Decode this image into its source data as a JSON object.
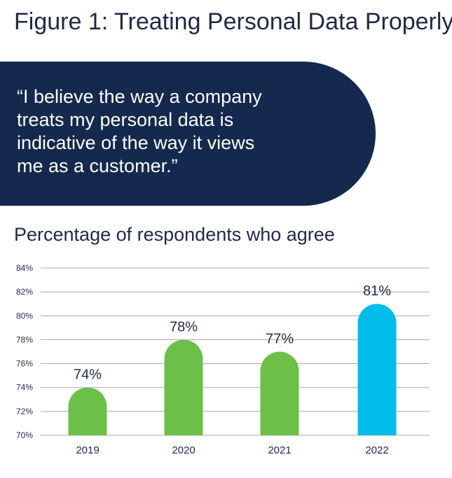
{
  "figure": {
    "title": "Figure 1: Treating Personal Data Properly",
    "quote": "“I believe the way a company\n treats my personal data is\n indicative of the way it views\n me as a customer.”"
  },
  "colors": {
    "quote_background": "#14294d",
    "bar_green": "#6cc04a",
    "bar_blue": "#00bceb",
    "text_dark": "#1f2a44",
    "grid": "#a8a8a8"
  },
  "chart_data": {
    "type": "bar",
    "title": "Percentage of respondents who agree",
    "xlabel": "",
    "ylabel": "",
    "categories": [
      "2019",
      "2020",
      "2021",
      "2022"
    ],
    "values": [
      74,
      78,
      77,
      81
    ],
    "value_labels": [
      "74%",
      "78%",
      "77%",
      "81%"
    ],
    "bar_colors": [
      "#6cc04a",
      "#6cc04a",
      "#6cc04a",
      "#00bceb"
    ],
    "ylim": [
      70,
      84
    ],
    "yticks": [
      70,
      72,
      74,
      76,
      78,
      80,
      82,
      84
    ],
    "ytick_labels": [
      "70%",
      "72%",
      "74%",
      "76%",
      "78%",
      "80%",
      "82%",
      "84%"
    ],
    "grid": true,
    "legend": "none"
  }
}
